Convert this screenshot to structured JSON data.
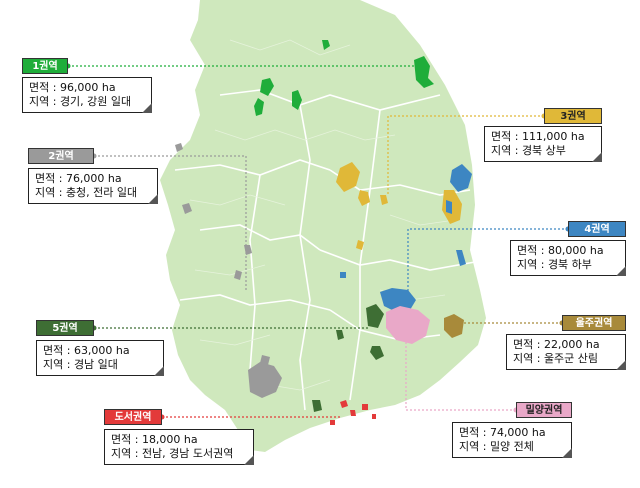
{
  "colors": {
    "land": "#cfe8bd",
    "border": "#ffffff",
    "r1": "#1fad3a",
    "r2": "#9a9a9a",
    "r3": "#e0b838",
    "r4": "#3d86c2",
    "r5": "#3e6e34",
    "ulju": "#a88a3a",
    "miryang": "#e9a8c8",
    "island": "#e33a3a"
  },
  "regions": [
    {
      "id": "r1",
      "tag": "1권역",
      "area": "면적 : 96,000 ha",
      "where": "지역 : 경기, 강원 일대",
      "color": "#1fad3a",
      "text": "#ffffff"
    },
    {
      "id": "r2",
      "tag": "2권역",
      "area": "면적 : 76,000 ha",
      "where": "지역 : 충청, 전라 일대",
      "color": "#9a9a9a",
      "text": "#ffffff"
    },
    {
      "id": "r3",
      "tag": "3권역",
      "area": "면적 : 111,000 ha",
      "where": "지역 : 경북 상부",
      "color": "#e0b838",
      "text": "#222222"
    },
    {
      "id": "r4",
      "tag": "4권역",
      "area": "면적 : 80,000 ha",
      "where": "지역 : 경북 하부",
      "color": "#3d86c2",
      "text": "#ffffff"
    },
    {
      "id": "r5",
      "tag": "5권역",
      "area": "면적 : 63,000 ha",
      "where": "지역 : 경남 일대",
      "color": "#3e6e34",
      "text": "#ffffff"
    },
    {
      "id": "ulju",
      "tag": "울주권역",
      "area": "면적 : 22,000 ha",
      "where": "지역 : 울주군 산림",
      "color": "#a88a3a",
      "text": "#ffffff"
    },
    {
      "id": "island",
      "tag": "도서권역",
      "area": "면적 : 18,000 ha",
      "where": "지역 : 전남, 경남 도서권역",
      "color": "#e33a3a",
      "text": "#ffffff"
    },
    {
      "id": "miryang",
      "tag": "밀양권역",
      "area": "면적 : 74,000 ha",
      "where": "지역 : 밀양 전체",
      "color": "#e9a8c8",
      "text": "#222222"
    }
  ]
}
